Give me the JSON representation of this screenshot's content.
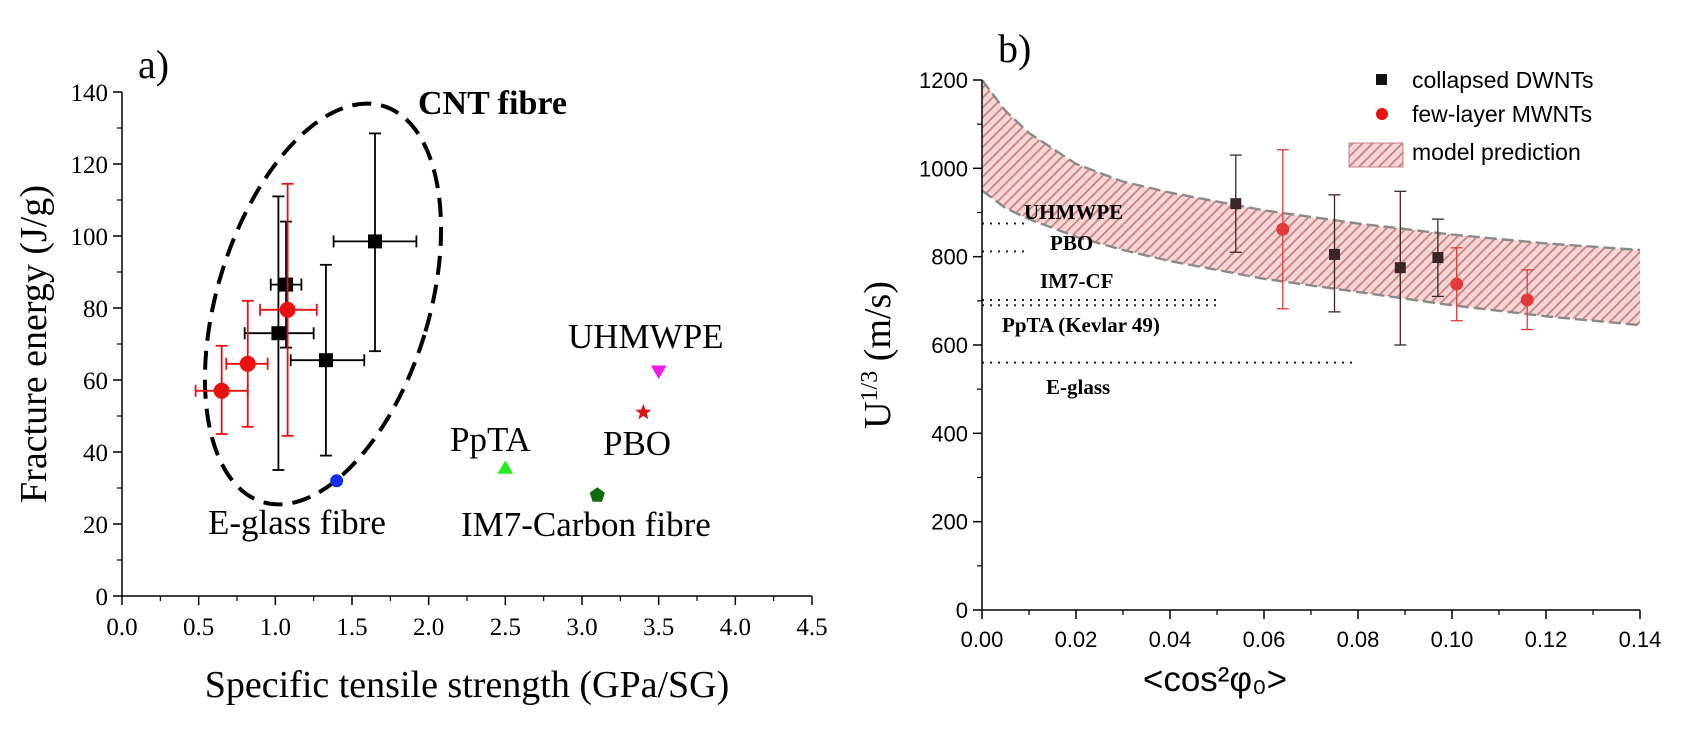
{
  "chart_data": [
    {
      "panel_label": "a)",
      "type": "scatter",
      "xlabel": "Specific tensile strength (GPa/SG)",
      "ylabel": "Fracture energy (J/g)",
      "xlim": [
        0,
        4.5
      ],
      "ylim": [
        0,
        140
      ],
      "xticks": [
        "0.0",
        "0.5",
        "1.0",
        "1.5",
        "2.0",
        "2.5",
        "3.0",
        "3.5",
        "4.0",
        "4.5"
      ],
      "yticks": [
        "0",
        "20",
        "40",
        "60",
        "80",
        "100",
        "120",
        "140"
      ],
      "group_label": "CNT fibre",
      "series": [
        {
          "name": "CNT fibre (black)",
          "color": "#000000",
          "marker": "square",
          "points": [
            {
              "x": 1.02,
              "y": 73,
              "xlo": 0.8,
              "xhi": 1.25,
              "ylo": 35,
              "yhi": 111
            },
            {
              "x": 1.07,
              "y": 86.5,
              "xlo": 0.97,
              "xhi": 1.17,
              "ylo": 69,
              "yhi": 104
            },
            {
              "x": 1.33,
              "y": 65.5,
              "xlo": 1.1,
              "xhi": 1.58,
              "ylo": 39,
              "yhi": 92
            },
            {
              "x": 1.65,
              "y": 98.5,
              "xlo": 1.38,
              "xhi": 1.92,
              "ylo": 68,
              "yhi": 128.5
            }
          ]
        },
        {
          "name": "CNT fibre (red)",
          "color": "#e81010",
          "marker": "circle",
          "points": [
            {
              "x": 0.65,
              "y": 57,
              "xlo": 0.48,
              "xhi": 0.82,
              "ylo": 45,
              "yhi": 69.5
            },
            {
              "x": 0.82,
              "y": 64.5,
              "xlo": 0.68,
              "xhi": 0.95,
              "ylo": 47,
              "yhi": 82
            },
            {
              "x": 1.08,
              "y": 79.5,
              "xlo": 0.9,
              "xhi": 1.27,
              "ylo": 44.5,
              "yhi": 114.5
            }
          ]
        }
      ],
      "reference_points": [
        {
          "label": "E-glass fibre",
          "x": 1.4,
          "y": 32,
          "color": "#1030ee",
          "marker": "circle"
        },
        {
          "label": "PpTA",
          "x": 2.5,
          "y": 35.5,
          "color": "#20ee20",
          "marker": "triangle-up"
        },
        {
          "label": "IM7-Carbon fibre",
          "x": 3.1,
          "y": 28,
          "color": "#0d6a0d",
          "marker": "pentagon"
        },
        {
          "label": "PBO",
          "x": 3.4,
          "y": 51,
          "color": "#d81818",
          "marker": "star"
        },
        {
          "label": "UHMWPE",
          "x": 3.5,
          "y": 62.5,
          "color": "#ee18ee",
          "marker": "triangle-down"
        }
      ]
    },
    {
      "panel_label": "b)",
      "type": "scatter",
      "xlabel": "<cos²φ₀>",
      "ylabel_base": "U",
      "ylabel_sup": "1/3",
      "ylabel_unit": " (m/s)",
      "xlim": [
        0,
        0.14
      ],
      "ylim": [
        0,
        1200
      ],
      "xticks": [
        "0.00",
        "0.02",
        "0.04",
        "0.06",
        "0.08",
        "0.10",
        "0.12",
        "0.14"
      ],
      "yticks": [
        "0",
        "200",
        "400",
        "600",
        "800",
        "1000",
        "1200"
      ],
      "legend": [
        "collapsed DWNTs",
        "few-layer MWNTs",
        "model prediction"
      ],
      "series": [
        {
          "name": "collapsed DWNTs",
          "color": "#3a2626",
          "marker": "square",
          "points": [
            {
              "x": 0.054,
              "y": 920,
              "ylo": 810,
              "yhi": 1030
            },
            {
              "x": 0.075,
              "y": 805,
              "ylo": 675,
              "yhi": 940
            },
            {
              "x": 0.089,
              "y": 775,
              "ylo": 600,
              "yhi": 948
            },
            {
              "x": 0.097,
              "y": 798,
              "ylo": 710,
              "yhi": 885
            }
          ]
        },
        {
          "name": "few-layer MWNTs",
          "color": "#e23a3a",
          "marker": "circle",
          "points": [
            {
              "x": 0.064,
              "y": 862,
              "ylo": 682,
              "yhi": 1042
            },
            {
              "x": 0.101,
              "y": 738,
              "ylo": 655,
              "yhi": 820
            },
            {
              "x": 0.116,
              "y": 702,
              "ylo": 635,
              "yhi": 770
            }
          ]
        }
      ],
      "model_band": {
        "name": "model prediction",
        "upper": [
          [
            0,
            1200
          ],
          [
            0.005,
            1130
          ],
          [
            0.01,
            1080
          ],
          [
            0.02,
            1010
          ],
          [
            0.03,
            970
          ],
          [
            0.04,
            945
          ],
          [
            0.05,
            925
          ],
          [
            0.06,
            905
          ],
          [
            0.08,
            875
          ],
          [
            0.1,
            850
          ],
          [
            0.12,
            830
          ],
          [
            0.14,
            815
          ]
        ],
        "lower": [
          [
            0,
            950
          ],
          [
            0.005,
            910
          ],
          [
            0.01,
            885
          ],
          [
            0.02,
            845
          ],
          [
            0.03,
            815
          ],
          [
            0.04,
            790
          ],
          [
            0.05,
            770
          ],
          [
            0.06,
            750
          ],
          [
            0.08,
            720
          ],
          [
            0.1,
            690
          ],
          [
            0.12,
            665
          ],
          [
            0.14,
            645
          ]
        ]
      },
      "reference_lines": [
        {
          "label": "UHMWPE",
          "y": 875,
          "x_end": 0.01
        },
        {
          "label": "PBO",
          "y": 812,
          "x_end": 0.01
        },
        {
          "label": "IM7-CF",
          "y": 702,
          "x_end": 0.05
        },
        {
          "label": "PpTA (Kevlar 49)",
          "y": 690,
          "x_end": 0.05
        },
        {
          "label": "E-glass",
          "y": 560,
          "x_end": 0.08
        }
      ]
    }
  ]
}
